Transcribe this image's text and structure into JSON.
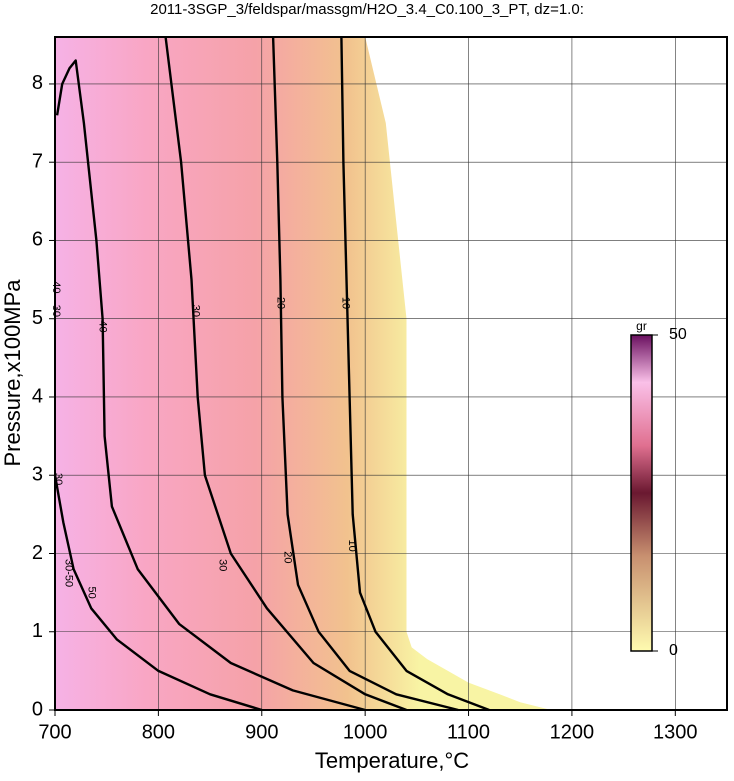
{
  "chart_data": {
    "type": "contour",
    "title": "2011-3SGP_3/feldspar/massgm/H2O_3.4_C0.100_3_PT, dz=1.0:",
    "x_label": "Temperature,°C",
    "y_label": "Pressure,x100MPa",
    "xlim": [
      700,
      1350
    ],
    "ylim": [
      0,
      8.6
    ],
    "xticks": [
      700,
      800,
      900,
      1000,
      1100,
      1200,
      1300
    ],
    "yticks": [
      0,
      1,
      2,
      3,
      4,
      5,
      6,
      7,
      8
    ],
    "grid": true,
    "filled_region": {
      "x": [
        700,
        1000,
        1020,
        1032,
        1040,
        1040,
        1040,
        1045,
        1060,
        1080,
        1100,
        1130,
        1150,
        1180,
        700
      ],
      "y": [
        8.6,
        8.6,
        7.5,
        6.0,
        5.0,
        3.0,
        1.0,
        0.8,
        0.65,
        0.5,
        0.35,
        0.2,
        0.1,
        0,
        0
      ]
    },
    "contours": [
      {
        "level": 10,
        "x": [
          977,
          979,
          982,
          985,
          988,
          995,
          1010,
          1040,
          1080,
          1120
        ],
        "y": [
          8.6,
          7.0,
          5.5,
          4.0,
          2.5,
          1.5,
          1.0,
          0.5,
          0.2,
          0
        ]
      },
      {
        "level": 20,
        "x": [
          911,
          915,
          918,
          920,
          925,
          935,
          955,
          985,
          1030,
          1090
        ],
        "y": [
          8.6,
          7.0,
          5.5,
          4.0,
          2.5,
          1.6,
          1.0,
          0.5,
          0.2,
          0
        ]
      },
      {
        "level": 30,
        "x": [
          807,
          822,
          832,
          838,
          845,
          870,
          905,
          950,
          1000,
          1040
        ],
        "y": [
          8.6,
          7.0,
          5.5,
          4.0,
          3.0,
          2.0,
          1.3,
          0.6,
          0.2,
          0
        ]
      },
      {
        "level": 40,
        "x": [
          702,
          707,
          714,
          720,
          728,
          740,
          746,
          748,
          755,
          780,
          820,
          870,
          930,
          1000
        ],
        "y": [
          7.6,
          8.0,
          8.2,
          8.3,
          7.5,
          6.0,
          5.0,
          3.5,
          2.6,
          1.8,
          1.1,
          0.6,
          0.25,
          0
        ]
      },
      {
        "level": 50,
        "x": [
          700,
          708,
          718,
          735,
          760,
          800,
          850,
          900
        ],
        "y": [
          3.0,
          2.4,
          1.8,
          1.3,
          0.9,
          0.5,
          0.2,
          0
        ]
      }
    ],
    "contour_labels": [
      {
        "text": "40",
        "x": 701,
        "y": 5.4
      },
      {
        "text": "30",
        "x": 701,
        "y": 5.1
      },
      {
        "text": "40",
        "x": 746,
        "y": 4.9
      },
      {
        "text": "30",
        "x": 836,
        "y": 5.1
      },
      {
        "text": "20",
        "x": 918,
        "y": 5.2
      },
      {
        "text": "10",
        "x": 981,
        "y": 5.2
      },
      {
        "text": "10",
        "x": 987,
        "y": 2.1
      },
      {
        "text": "20",
        "x": 925,
        "y": 1.95
      },
      {
        "text": "30",
        "x": 862,
        "y": 1.85
      },
      {
        "text": "30-50",
        "x": 713,
        "y": 1.75
      },
      {
        "text": "50",
        "x": 735,
        "y": 1.5
      },
      {
        "text": "30",
        "x": 703,
        "y": 2.95
      }
    ],
    "colorbar": {
      "label": "gr",
      "lim": [
        0,
        50
      ],
      "ticks": [
        0,
        50
      ]
    }
  }
}
